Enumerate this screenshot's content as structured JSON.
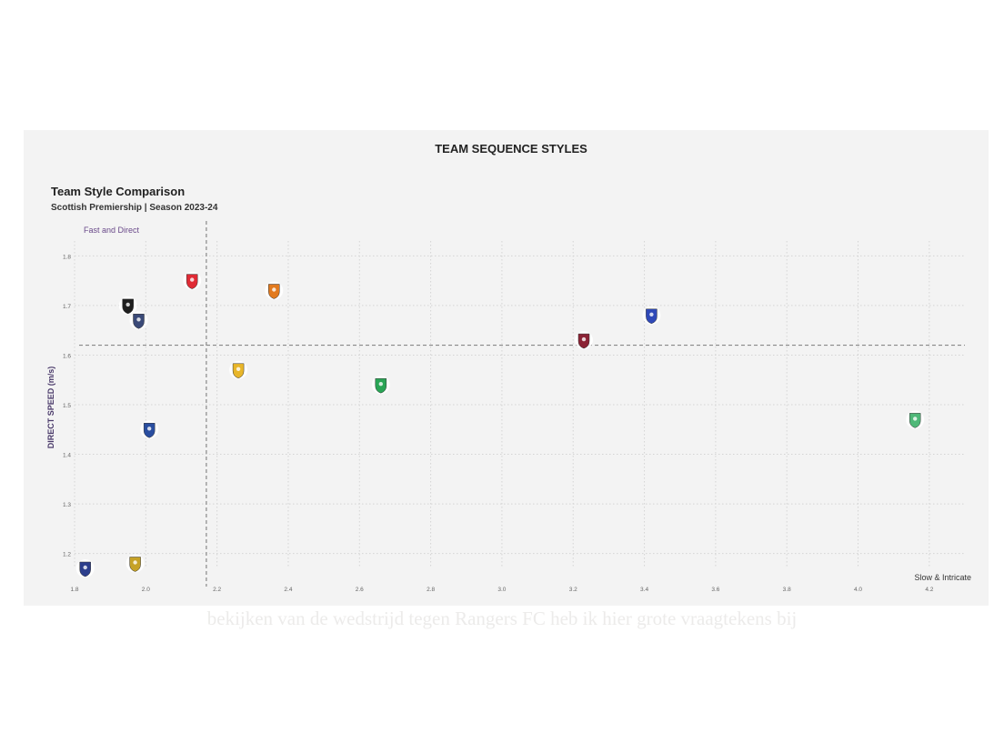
{
  "header": {
    "title": "TEAM SEQUENCE STYLES"
  },
  "chart_data": {
    "type": "scatter",
    "title": "Team Style Comparison",
    "subtitle": "Scottish Premiership | Season 2023-24",
    "xlabel": "",
    "ylabel": "DIRECT SPEED (m/s)",
    "xlim": [
      1.8,
      4.3
    ],
    "ylim": [
      1.17,
      1.83
    ],
    "xticks": [
      "1.8",
      "2.0",
      "2.2",
      "2.4",
      "2.6",
      "2.8",
      "3.0",
      "3.2",
      "3.4",
      "3.6",
      "3.8",
      "4.0",
      "4.2"
    ],
    "yticks": [
      "1.2",
      "1.3",
      "1.4",
      "1.5",
      "1.6",
      "1.7",
      "1.8"
    ],
    "grid": true,
    "reference_lines": {
      "x": 2.17,
      "y": 1.62
    },
    "quadrant_labels": {
      "top_left": "Fast and Direct",
      "bottom_right": "Slow & Intricate"
    },
    "points": [
      {
        "x": 1.83,
        "y": 1.17,
        "color": "#2c3e8c",
        "icon": "crest-icon"
      },
      {
        "x": 1.97,
        "y": 1.18,
        "color": "#c6a227",
        "icon": "crest-icon"
      },
      {
        "x": 1.95,
        "y": 1.7,
        "color": "#1f1f1f",
        "icon": "crest-icon"
      },
      {
        "x": 1.98,
        "y": 1.67,
        "color": "#3b4a78",
        "icon": "crest-icon"
      },
      {
        "x": 2.01,
        "y": 1.45,
        "color": "#2a4ea0",
        "icon": "crest-icon"
      },
      {
        "x": 2.13,
        "y": 1.75,
        "color": "#e02b35",
        "icon": "crest-icon"
      },
      {
        "x": 2.26,
        "y": 1.57,
        "color": "#e8b62a",
        "icon": "crest-icon"
      },
      {
        "x": 2.36,
        "y": 1.73,
        "color": "#e27a1e",
        "icon": "crest-icon"
      },
      {
        "x": 2.66,
        "y": 1.54,
        "color": "#2aa556",
        "icon": "crest-icon"
      },
      {
        "x": 3.23,
        "y": 1.63,
        "color": "#8b2335",
        "icon": "crest-icon"
      },
      {
        "x": 3.42,
        "y": 1.68,
        "color": "#2f49b8",
        "icon": "crest-icon"
      },
      {
        "x": 4.16,
        "y": 1.47,
        "color": "#4fb878",
        "icon": "crest-icon"
      }
    ]
  },
  "caption": "bekijken van de wedstrijd tegen Rangers FC heb ik hier grote vraagtekens bij"
}
